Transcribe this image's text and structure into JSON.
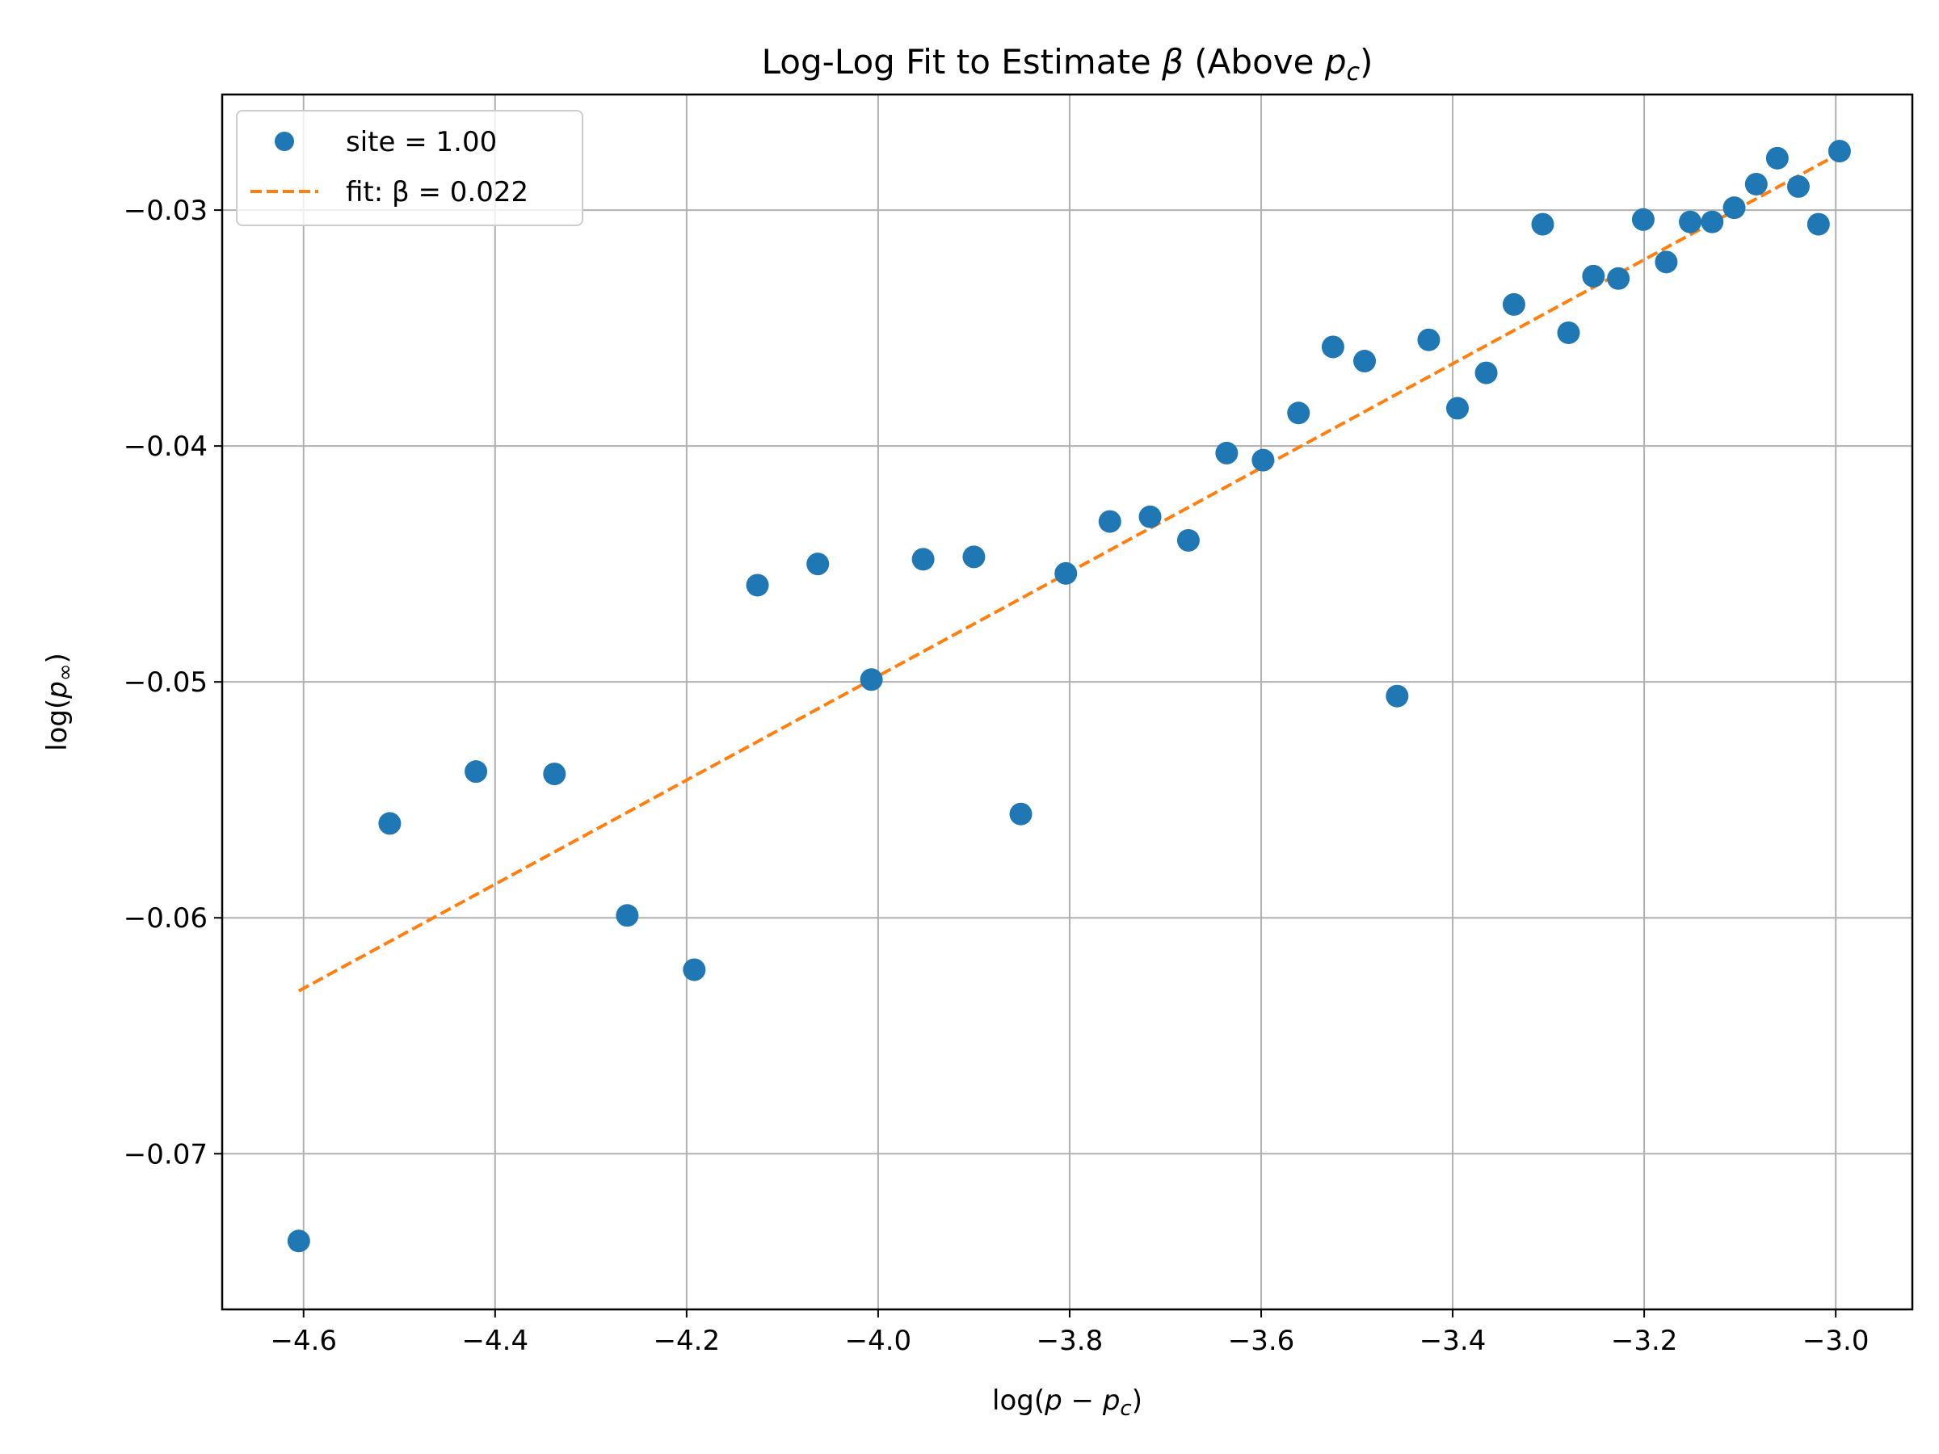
{
  "chart_data": {
    "type": "scatter",
    "title_main": "Log-Log Fit to Estimate ",
    "title_symbol": "β",
    "title_paren_open": " (Above ",
    "title_p": "p",
    "title_sub": "c",
    "title_paren_close": ")",
    "xlabel_main": "log(",
    "xlabel_p": "p",
    "xlabel_minus": " − ",
    "xlabel_p2": "p",
    "xlabel_sub": "c",
    "xlabel_close": ")",
    "ylabel_main": "log(",
    "ylabel_p": "p",
    "ylabel_sub": "∞",
    "ylabel_close": ")",
    "xlim": [
      -4.685,
      -2.92
    ],
    "ylim": [
      -0.0766,
      -0.0251
    ],
    "x_ticks": [
      -4.6,
      -4.4,
      -4.2,
      -4.0,
      -3.8,
      -3.6,
      -3.4,
      -3.2,
      -3.0
    ],
    "x_tick_labels": [
      "−4.6",
      "−4.4",
      "−4.2",
      "−4.0",
      "−3.8",
      "−3.6",
      "−3.4",
      "−3.2",
      "−3.0"
    ],
    "y_ticks": [
      -0.07,
      -0.06,
      -0.05,
      -0.04,
      -0.03
    ],
    "y_tick_labels": [
      "−0.07",
      "−0.06",
      "−0.05",
      "−0.04",
      "−0.03"
    ],
    "grid": true,
    "legend_position": "top-left",
    "series": [
      {
        "name": "site = 1.00",
        "kind": "scatter",
        "color": "#1f77b4",
        "points": [
          [
            -4.605,
            -0.0737
          ],
          [
            -4.51,
            -0.056
          ],
          [
            -4.42,
            -0.0538
          ],
          [
            -4.338,
            -0.0539
          ],
          [
            -4.262,
            -0.0599
          ],
          [
            -4.192,
            -0.0622
          ],
          [
            -4.126,
            -0.0459
          ],
          [
            -4.063,
            -0.045
          ],
          [
            -4.007,
            -0.0499
          ],
          [
            -3.953,
            -0.0448
          ],
          [
            -3.9,
            -0.0447
          ],
          [
            -3.851,
            -0.0556
          ],
          [
            -3.804,
            -0.0454
          ],
          [
            -3.758,
            -0.0432
          ],
          [
            -3.716,
            -0.043
          ],
          [
            -3.676,
            -0.044
          ],
          [
            -3.636,
            -0.0403
          ],
          [
            -3.598,
            -0.0406
          ],
          [
            -3.561,
            -0.0386
          ],
          [
            -3.525,
            -0.0358
          ],
          [
            -3.492,
            -0.0364
          ],
          [
            -3.458,
            -0.0506
          ],
          [
            -3.425,
            -0.0355
          ],
          [
            -3.395,
            -0.0384
          ],
          [
            -3.365,
            -0.0369
          ],
          [
            -3.336,
            -0.034
          ],
          [
            -3.306,
            -0.0306
          ],
          [
            -3.279,
            -0.0352
          ],
          [
            -3.253,
            -0.0328
          ],
          [
            -3.227,
            -0.0329
          ],
          [
            -3.201,
            -0.0304
          ],
          [
            -3.177,
            -0.0322
          ],
          [
            -3.152,
            -0.0305
          ],
          [
            -3.129,
            -0.0305
          ],
          [
            -3.106,
            -0.0299
          ],
          [
            -3.083,
            -0.0289
          ],
          [
            -3.061,
            -0.0278
          ],
          [
            -3.039,
            -0.029
          ],
          [
            -3.018,
            -0.0306
          ],
          [
            -2.996,
            -0.0275
          ]
        ]
      },
      {
        "name": "fit: β = 0.022",
        "kind": "line",
        "style": "dashed",
        "color": "#ff7f0e",
        "points": [
          [
            -4.605,
            -0.0631
          ],
          [
            -2.996,
            -0.0276
          ]
        ]
      }
    ]
  }
}
